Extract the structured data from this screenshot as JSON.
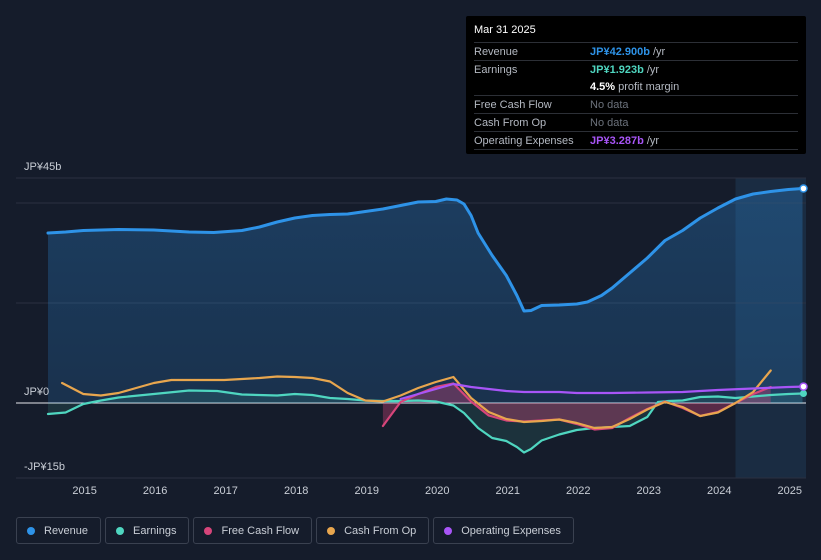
{
  "tooltip": {
    "date": "Mar 31 2025",
    "rows": [
      {
        "label": "Revenue",
        "value": "JP¥42.900b",
        "unit": "/yr",
        "color": "#2e93e8"
      },
      {
        "label": "Earnings",
        "value": "JP¥1.923b",
        "unit": "/yr",
        "color": "#4fd6c0"
      },
      {
        "label": "",
        "value": "4.5%",
        "unit": "profit margin",
        "color": "#ffffff"
      },
      {
        "label": "Free Cash Flow",
        "value": "No data",
        "unit": "",
        "color": null
      },
      {
        "label": "Cash From Op",
        "value": "No data",
        "unit": "",
        "color": null
      },
      {
        "label": "Operating Expenses",
        "value": "JP¥3.287b",
        "unit": "/yr",
        "color": "#a855f7"
      }
    ]
  },
  "legend": [
    {
      "label": "Revenue",
      "color": "#2e93e8"
    },
    {
      "label": "Earnings",
      "color": "#4fd6c0"
    },
    {
      "label": "Free Cash Flow",
      "color": "#d6457a"
    },
    {
      "label": "Cash From Op",
      "color": "#e8a64e"
    },
    {
      "label": "Operating Expenses",
      "color": "#a855f7"
    }
  ],
  "chart_data": {
    "type": "area",
    "title": "",
    "ylim": [
      -15,
      45
    ],
    "xlim": [
      2014.45,
      2025.25
    ],
    "y_tick_labels": [
      {
        "value": 45,
        "label": "JP¥45b"
      },
      {
        "value": 0,
        "label": "JP¥0"
      },
      {
        "value": -15,
        "label": "-JP¥15b"
      }
    ],
    "x_ticks": [
      2015,
      2016,
      2017,
      2018,
      2019,
      2020,
      2021,
      2022,
      2023,
      2024,
      2025
    ],
    "forecast_start": 2024.25,
    "series": [
      {
        "name": "Revenue",
        "color": "#2e93e8",
        "fill": true,
        "points": [
          [
            2014.5,
            34.0
          ],
          [
            2014.75,
            34.2
          ],
          [
            2015.0,
            34.5
          ],
          [
            2015.5,
            34.7
          ],
          [
            2016.0,
            34.6
          ],
          [
            2016.25,
            34.4
          ],
          [
            2016.5,
            34.2
          ],
          [
            2016.85,
            34.1
          ],
          [
            2017.25,
            34.5
          ],
          [
            2017.5,
            35.2
          ],
          [
            2017.75,
            36.2
          ],
          [
            2018.0,
            37.0
          ],
          [
            2018.25,
            37.5
          ],
          [
            2018.5,
            37.7
          ],
          [
            2018.75,
            37.8
          ],
          [
            2019.0,
            38.3
          ],
          [
            2019.25,
            38.8
          ],
          [
            2019.5,
            39.5
          ],
          [
            2019.75,
            40.2
          ],
          [
            2020.0,
            40.3
          ],
          [
            2020.15,
            40.8
          ],
          [
            2020.3,
            40.6
          ],
          [
            2020.4,
            39.8
          ],
          [
            2020.5,
            37.5
          ],
          [
            2020.6,
            34.0
          ],
          [
            2020.8,
            29.5
          ],
          [
            2021.0,
            25.5
          ],
          [
            2021.15,
            21.5
          ],
          [
            2021.25,
            18.4
          ],
          [
            2021.35,
            18.5
          ],
          [
            2021.5,
            19.5
          ],
          [
            2021.75,
            19.6
          ],
          [
            2022.0,
            19.8
          ],
          [
            2022.15,
            20.2
          ],
          [
            2022.35,
            21.5
          ],
          [
            2022.5,
            23.0
          ],
          [
            2022.75,
            26.0
          ],
          [
            2023.0,
            29.0
          ],
          [
            2023.25,
            32.5
          ],
          [
            2023.5,
            34.5
          ],
          [
            2023.75,
            37.0
          ],
          [
            2024.0,
            39.0
          ],
          [
            2024.25,
            40.8
          ],
          [
            2024.5,
            41.8
          ],
          [
            2024.75,
            42.3
          ],
          [
            2025.0,
            42.7
          ],
          [
            2025.2,
            42.9
          ]
        ]
      },
      {
        "name": "Earnings",
        "color": "#4fd6c0",
        "fill": true,
        "points": [
          [
            2014.5,
            -2.2
          ],
          [
            2014.75,
            -1.9
          ],
          [
            2015.0,
            -0.2
          ],
          [
            2015.25,
            0.5
          ],
          [
            2015.5,
            1.1
          ],
          [
            2016.0,
            1.8
          ],
          [
            2016.5,
            2.5
          ],
          [
            2016.9,
            2.4
          ],
          [
            2017.25,
            1.7
          ],
          [
            2017.75,
            1.5
          ],
          [
            2018.0,
            1.8
          ],
          [
            2018.25,
            1.6
          ],
          [
            2018.5,
            1.0
          ],
          [
            2018.75,
            0.8
          ],
          [
            2019.0,
            0.5
          ],
          [
            2019.25,
            0.4
          ],
          [
            2019.5,
            0.4
          ],
          [
            2019.75,
            0.5
          ],
          [
            2020.0,
            0.3
          ],
          [
            2020.25,
            -0.5
          ],
          [
            2020.4,
            -2.0
          ],
          [
            2020.6,
            -5.0
          ],
          [
            2020.8,
            -7.0
          ],
          [
            2021.0,
            -7.6
          ],
          [
            2021.15,
            -8.8
          ],
          [
            2021.25,
            -9.9
          ],
          [
            2021.35,
            -9.2
          ],
          [
            2021.5,
            -7.5
          ],
          [
            2021.75,
            -6.3
          ],
          [
            2022.0,
            -5.4
          ],
          [
            2022.25,
            -5.0
          ],
          [
            2022.5,
            -4.8
          ],
          [
            2022.75,
            -4.6
          ],
          [
            2023.0,
            -2.8
          ],
          [
            2023.15,
            0.2
          ],
          [
            2023.3,
            0.4
          ],
          [
            2023.5,
            0.5
          ],
          [
            2023.75,
            1.2
          ],
          [
            2024.0,
            1.3
          ],
          [
            2024.25,
            1.0
          ],
          [
            2024.5,
            1.3
          ],
          [
            2024.75,
            1.6
          ],
          [
            2025.0,
            1.8
          ],
          [
            2025.2,
            1.9
          ]
        ]
      },
      {
        "name": "Free Cash Flow",
        "color": "#d6457a",
        "fill": true,
        "points": [
          [
            2019.25,
            -4.6
          ],
          [
            2019.5,
            0.2
          ],
          [
            2019.75,
            1.8
          ],
          [
            2020.0,
            3.2
          ],
          [
            2020.25,
            3.9
          ],
          [
            2020.5,
            0.3
          ],
          [
            2020.75,
            -2.5
          ],
          [
            2021.0,
            -3.5
          ],
          [
            2021.25,
            -3.7
          ],
          [
            2021.5,
            -3.5
          ],
          [
            2021.75,
            -3.3
          ],
          [
            2022.0,
            -4.2
          ],
          [
            2022.25,
            -5.3
          ],
          [
            2022.5,
            -5.0
          ],
          [
            2022.75,
            -3.0
          ],
          [
            2023.0,
            -1.2
          ],
          [
            2023.25,
            0.3
          ],
          [
            2023.5,
            -1.0
          ],
          [
            2023.75,
            -2.6
          ],
          [
            2024.0,
            -1.8
          ],
          [
            2024.25,
            0.0
          ],
          [
            2024.5,
            1.8
          ],
          [
            2024.75,
            3.2
          ]
        ]
      },
      {
        "name": "Cash From Op",
        "color": "#e8a64e",
        "fill": false,
        "points": [
          [
            2014.7,
            4.0
          ],
          [
            2015.0,
            1.8
          ],
          [
            2015.25,
            1.5
          ],
          [
            2015.5,
            2.0
          ],
          [
            2015.75,
            3.0
          ],
          [
            2016.0,
            4.0
          ],
          [
            2016.25,
            4.6
          ],
          [
            2016.5,
            4.6
          ],
          [
            2016.75,
            4.6
          ],
          [
            2017.0,
            4.6
          ],
          [
            2017.25,
            4.8
          ],
          [
            2017.5,
            5.0
          ],
          [
            2017.75,
            5.3
          ],
          [
            2018.0,
            5.2
          ],
          [
            2018.25,
            5.0
          ],
          [
            2018.5,
            4.3
          ],
          [
            2018.75,
            2.0
          ],
          [
            2019.0,
            0.5
          ],
          [
            2019.25,
            0.3
          ],
          [
            2019.5,
            1.5
          ],
          [
            2019.75,
            3.0
          ],
          [
            2020.0,
            4.2
          ],
          [
            2020.25,
            5.2
          ],
          [
            2020.5,
            1.0
          ],
          [
            2020.75,
            -1.8
          ],
          [
            2021.0,
            -3.2
          ],
          [
            2021.25,
            -3.8
          ],
          [
            2021.5,
            -3.6
          ],
          [
            2021.75,
            -3.3
          ],
          [
            2022.0,
            -4.0
          ],
          [
            2022.25,
            -5.0
          ],
          [
            2022.5,
            -4.8
          ],
          [
            2022.75,
            -3.2
          ],
          [
            2023.0,
            -1.3
          ],
          [
            2023.25,
            0.2
          ],
          [
            2023.5,
            -0.8
          ],
          [
            2023.75,
            -2.6
          ],
          [
            2024.0,
            -1.9
          ],
          [
            2024.25,
            0.0
          ],
          [
            2024.5,
            2.2
          ],
          [
            2024.75,
            6.5
          ]
        ]
      },
      {
        "name": "Operating Expenses",
        "color": "#a855f7",
        "fill": false,
        "points": [
          [
            2019.5,
            0.8
          ],
          [
            2019.75,
            1.8
          ],
          [
            2020.0,
            2.8
          ],
          [
            2020.25,
            3.8
          ],
          [
            2020.5,
            3.2
          ],
          [
            2020.75,
            2.8
          ],
          [
            2021.0,
            2.4
          ],
          [
            2021.25,
            2.2
          ],
          [
            2021.5,
            2.2
          ],
          [
            2021.75,
            2.2
          ],
          [
            2022.0,
            2.0
          ],
          [
            2022.5,
            2.0
          ],
          [
            2023.0,
            2.1
          ],
          [
            2023.5,
            2.2
          ],
          [
            2024.0,
            2.6
          ],
          [
            2024.5,
            2.9
          ],
          [
            2025.0,
            3.2
          ],
          [
            2025.2,
            3.287
          ]
        ]
      }
    ]
  }
}
